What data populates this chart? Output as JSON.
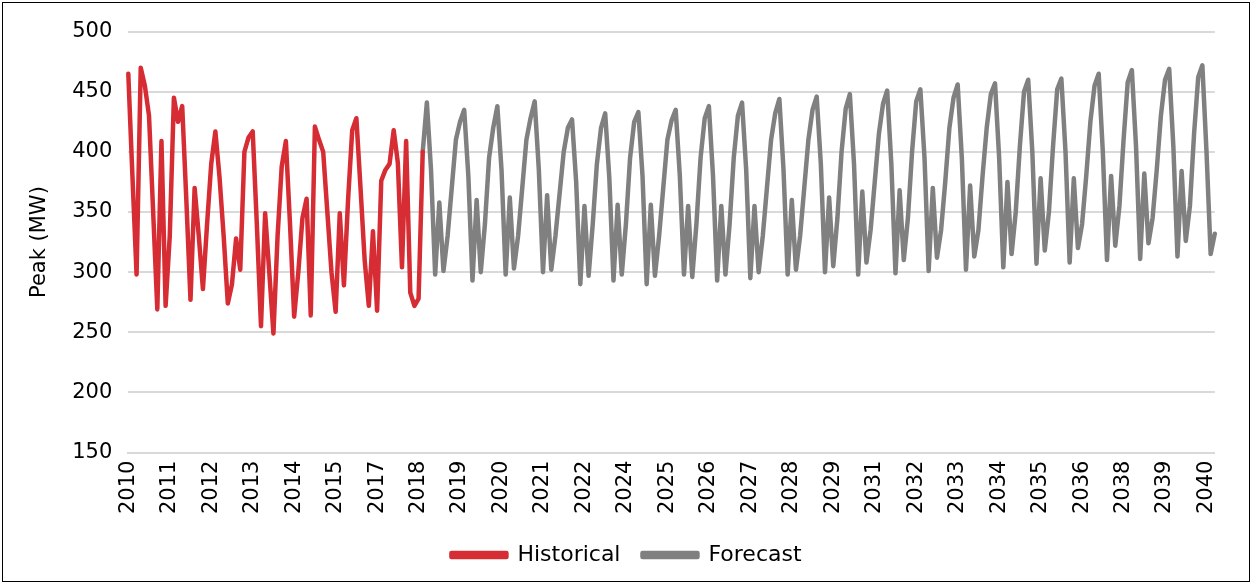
{
  "chart_data": {
    "type": "line",
    "ylabel": "Peak (MW)",
    "categories": [
      "2010",
      null,
      null,
      null,
      null,
      null,
      null,
      null,
      null,
      null,
      "2011",
      null,
      null,
      null,
      null,
      null,
      null,
      null,
      null,
      null,
      "2012",
      null,
      null,
      null,
      null,
      null,
      null,
      null,
      null,
      null,
      "2013",
      null,
      null,
      null,
      null,
      null,
      null,
      null,
      null,
      null,
      "2014",
      null,
      null,
      null,
      null,
      null,
      null,
      null,
      null,
      null,
      "2015",
      null,
      null,
      null,
      null,
      null,
      null,
      null,
      null,
      null,
      "2017",
      null,
      null,
      null,
      null,
      null,
      null,
      null,
      null,
      null,
      "2018",
      null,
      null,
      null,
      null,
      null,
      null,
      null,
      null,
      null,
      "2019",
      null,
      null,
      null,
      null,
      null,
      null,
      null,
      null,
      null,
      "2020",
      null,
      null,
      null,
      null,
      null,
      null,
      null,
      null,
      null,
      "2021",
      null,
      null,
      null,
      null,
      null,
      null,
      null,
      null,
      null,
      "2022",
      null,
      null,
      null,
      null,
      null,
      null,
      null,
      null,
      null,
      "2024",
      null,
      null,
      null,
      null,
      null,
      null,
      null,
      null,
      null,
      "2025",
      null,
      null,
      null,
      null,
      null,
      null,
      null,
      null,
      null,
      "2026",
      null,
      null,
      null,
      null,
      null,
      null,
      null,
      null,
      null,
      "2027",
      null,
      null,
      null,
      null,
      null,
      null,
      null,
      null,
      null,
      "2028",
      null,
      null,
      null,
      null,
      null,
      null,
      null,
      null,
      null,
      "2029",
      null,
      null,
      null,
      null,
      null,
      null,
      null,
      null,
      null,
      "2031",
      null,
      null,
      null,
      null,
      null,
      null,
      null,
      null,
      null,
      "2032",
      null,
      null,
      null,
      null,
      null,
      null,
      null,
      null,
      null,
      "2033",
      null,
      null,
      null,
      null,
      null,
      null,
      null,
      null,
      null,
      "2034",
      null,
      null,
      null,
      null,
      null,
      null,
      null,
      null,
      null,
      "2035",
      null,
      null,
      null,
      null,
      null,
      null,
      null,
      null,
      null,
      "2036",
      null,
      null,
      null,
      null,
      null,
      null,
      null,
      null,
      null,
      "2038",
      null,
      null,
      null,
      null,
      null,
      null,
      null,
      null,
      null,
      "2039",
      null,
      null,
      null,
      null,
      null,
      null,
      null,
      null,
      null,
      "2040",
      null,
      null
    ],
    "series": [
      {
        "name": "Historical",
        "color": "#d62c33",
        "values": [
          465,
          380,
          298,
          470,
          455,
          430,
          350,
          269,
          409,
          272,
          330,
          445,
          425,
          438,
          360,
          277,
          370,
          330,
          286,
          340,
          390,
          417,
          379,
          330,
          274,
          290,
          328,
          302,
          400,
          412,
          417,
          340,
          255,
          349,
          300,
          249,
          330,
          388,
          409,
          340,
          263,
          300,
          345,
          361,
          264,
          421,
          410,
          400,
          350,
          300,
          267,
          349,
          289,
          360,
          418,
          428,
          370,
          310,
          272,
          334,
          268,
          376,
          385,
          390,
          418,
          391,
          304,
          409,
          283,
          272,
          278,
          400,
          null,
          null,
          null,
          null,
          null,
          null,
          null,
          null,
          null,
          null,
          null,
          null,
          null,
          null,
          null,
          null,
          null,
          null,
          null,
          null,
          null,
          null,
          null,
          null,
          null,
          null,
          null,
          null,
          null,
          null,
          null,
          null,
          null,
          null,
          null,
          null,
          null,
          null,
          null,
          null,
          null,
          null,
          null,
          null,
          null,
          null,
          null,
          null,
          null,
          null,
          null,
          null,
          null,
          null,
          null,
          null,
          null,
          null,
          null,
          null,
          null,
          null,
          null,
          null,
          null,
          null,
          null,
          null,
          null,
          null,
          null,
          null,
          null,
          null,
          null,
          null,
          null,
          null,
          null,
          null,
          null,
          null,
          null,
          null,
          null,
          null,
          null,
          null,
          null,
          null,
          null,
          null,
          null,
          null,
          null,
          null,
          null,
          null,
          null,
          null,
          null,
          null,
          null,
          null,
          null,
          null,
          null,
          null,
          null,
          null,
          null,
          null,
          null,
          null,
          null,
          null,
          null,
          null,
          null,
          null,
          null,
          null,
          null,
          null,
          null,
          null,
          null,
          null,
          null,
          null,
          null,
          null,
          null,
          null,
          null,
          null,
          null,
          null,
          null,
          null,
          null,
          null,
          null,
          null,
          null,
          null,
          null,
          null,
          null,
          null,
          null,
          null,
          null,
          null,
          null,
          null,
          null,
          null,
          null,
          null,
          null,
          null,
          null,
          null,
          null,
          null,
          null,
          null,
          null,
          null,
          null,
          null,
          null,
          null,
          null,
          null,
          null,
          null,
          null,
          null,
          null,
          null,
          null,
          null,
          null,
          null,
          null,
          null,
          null,
          null,
          null
        ]
      },
      {
        "name": "Forecast",
        "color": "#808080",
        "values": [
          null,
          null,
          null,
          null,
          null,
          null,
          null,
          null,
          null,
          null,
          null,
          null,
          null,
          null,
          null,
          null,
          null,
          null,
          null,
          null,
          null,
          null,
          null,
          null,
          null,
          null,
          null,
          null,
          null,
          null,
          null,
          null,
          null,
          null,
          null,
          null,
          null,
          null,
          null,
          null,
          null,
          null,
          null,
          null,
          null,
          null,
          null,
          null,
          null,
          null,
          null,
          null,
          null,
          null,
          null,
          null,
          null,
          null,
          null,
          null,
          null,
          null,
          null,
          null,
          null,
          null,
          null,
          null,
          null,
          null,
          null,
          400,
          441,
          385,
          298,
          358,
          301,
          330,
          370,
          410,
          425,
          435,
          380,
          293,
          360,
          300,
          340,
          395,
          420,
          438,
          385,
          298,
          362,
          303,
          330,
          370,
          410,
          428,
          442,
          385,
          300,
          364,
          302,
          330,
          365,
          400,
          420,
          427,
          375,
          290,
          355,
          297,
          340,
          390,
          420,
          432,
          378,
          293,
          356,
          298,
          340,
          395,
          425,
          433,
          380,
          290,
          356,
          297,
          330,
          370,
          410,
          426,
          435,
          380,
          298,
          355,
          296,
          340,
          395,
          428,
          438,
          380,
          293,
          355,
          298,
          340,
          395,
          430,
          441,
          385,
          295,
          355,
          300,
          330,
          370,
          410,
          432,
          444,
          385,
          298,
          360,
          302,
          330,
          370,
          410,
          435,
          446,
          390,
          300,
          362,
          305,
          345,
          400,
          436,
          448,
          390,
          298,
          367,
          308,
          335,
          375,
          415,
          440,
          451,
          390,
          299,
          368,
          310,
          345,
          400,
          442,
          452,
          395,
          301,
          370,
          312,
          335,
          375,
          420,
          445,
          456,
          395,
          302,
          372,
          313,
          335,
          380,
          420,
          448,
          457,
          395,
          304,
          375,
          315,
          350,
          405,
          450,
          460,
          400,
          307,
          378,
          318,
          350,
          405,
          452,
          461,
          400,
          308,
          378,
          320,
          340,
          380,
          425,
          455,
          465,
          400,
          310,
          380,
          322,
          355,
          410,
          458,
          468,
          405,
          311,
          382,
          324,
          345,
          385,
          430,
          460,
          469,
          405,
          313,
          384,
          326,
          355,
          415,
          462,
          472,
          400,
          315,
          332
        ]
      }
    ],
    "ylim": [
      150,
      500
    ],
    "yticks": [
      150,
      200,
      250,
      300,
      350,
      400,
      450,
      500
    ],
    "grid": "y",
    "legend": "bottom",
    "marker": "none"
  }
}
